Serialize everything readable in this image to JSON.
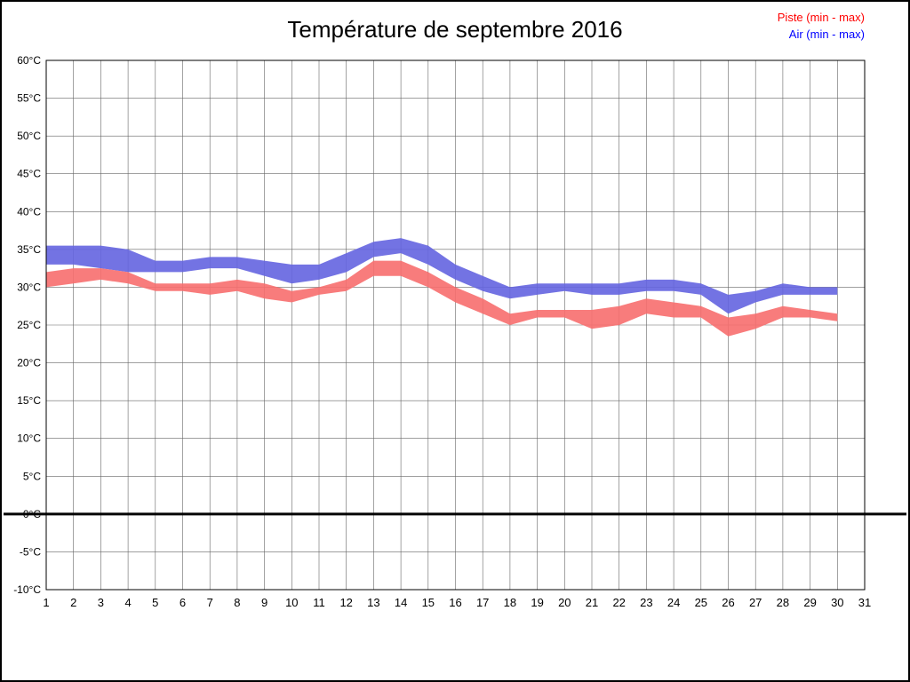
{
  "chart_data": {
    "type": "area",
    "title": "Température de septembre 2016",
    "legend": {
      "piste": {
        "label": "Piste (min - max)",
        "color": "#ff0000"
      },
      "air": {
        "label": "Air (min - max)",
        "color": "#0000ff"
      }
    },
    "xlabel": "",
    "ylabel": "",
    "ylim": [
      -10,
      60
    ],
    "xlim": [
      1,
      31
    ],
    "grid": true,
    "zero_line": true,
    "x_ticks": [
      1,
      2,
      3,
      4,
      5,
      6,
      7,
      8,
      9,
      10,
      11,
      12,
      13,
      14,
      15,
      16,
      17,
      18,
      19,
      20,
      21,
      22,
      23,
      24,
      25,
      26,
      27,
      28,
      29,
      30,
      31
    ],
    "y_ticks": [
      {
        "value": 60,
        "label": "60°C"
      },
      {
        "value": 55,
        "label": "55°C"
      },
      {
        "value": 50,
        "label": "50°C"
      },
      {
        "value": 45,
        "label": "45°C"
      },
      {
        "value": 40,
        "label": "40°C"
      },
      {
        "value": 35,
        "label": "35°C"
      },
      {
        "value": 30,
        "label": "30°C"
      },
      {
        "value": 25,
        "label": "25°C"
      },
      {
        "value": 20,
        "label": "20°C"
      },
      {
        "value": 15,
        "label": "15°C"
      },
      {
        "value": 10,
        "label": "10°C"
      },
      {
        "value": 5,
        "label": "5°C"
      },
      {
        "value": 0,
        "label": "0°C"
      },
      {
        "value": -5,
        "label": "-5°C"
      },
      {
        "value": -10,
        "label": "-10°C"
      }
    ],
    "days": [
      1,
      2,
      3,
      4,
      5,
      6,
      7,
      8,
      9,
      10,
      11,
      12,
      13,
      14,
      15,
      16,
      17,
      18,
      19,
      20,
      21,
      22,
      23,
      24,
      25,
      26,
      27,
      28,
      29,
      30
    ],
    "series": [
      {
        "name": "Air (min - max)",
        "fill": "#6464e0",
        "max": [
          35.5,
          35.5,
          35.5,
          35.0,
          33.5,
          33.5,
          34.0,
          34.0,
          33.5,
          33.0,
          33.0,
          34.5,
          36.0,
          36.5,
          35.5,
          33.0,
          31.5,
          30.0,
          30.5,
          30.5,
          30.5,
          30.5,
          31.0,
          31.0,
          30.5,
          29.0,
          29.5,
          30.5,
          30.0,
          30.0
        ],
        "min": [
          33.0,
          33.0,
          32.5,
          32.0,
          32.0,
          32.0,
          32.5,
          32.5,
          31.5,
          30.5,
          31.0,
          32.0,
          34.0,
          34.5,
          33.0,
          31.0,
          29.5,
          28.5,
          29.0,
          29.5,
          29.0,
          29.0,
          29.5,
          29.5,
          29.0,
          26.5,
          28.0,
          29.0,
          29.0,
          29.0
        ]
      },
      {
        "name": "Piste (min - max)",
        "fill": "#f76e6e",
        "max": [
          32.0,
          32.5,
          32.5,
          32.0,
          30.5,
          30.5,
          30.5,
          31.0,
          30.5,
          29.5,
          30.0,
          31.0,
          33.5,
          33.5,
          32.0,
          30.0,
          28.5,
          26.5,
          27.0,
          27.0,
          27.0,
          27.5,
          28.5,
          28.0,
          27.5,
          26.0,
          26.5,
          27.5,
          27.0,
          26.5
        ],
        "min": [
          30.0,
          30.5,
          31.0,
          30.5,
          29.5,
          29.5,
          29.0,
          29.5,
          28.5,
          28.0,
          29.0,
          29.5,
          31.5,
          31.5,
          30.0,
          28.0,
          26.5,
          25.0,
          26.0,
          26.0,
          24.5,
          25.0,
          26.5,
          26.0,
          26.0,
          23.5,
          24.5,
          26.0,
          26.0,
          25.5
        ]
      }
    ]
  }
}
